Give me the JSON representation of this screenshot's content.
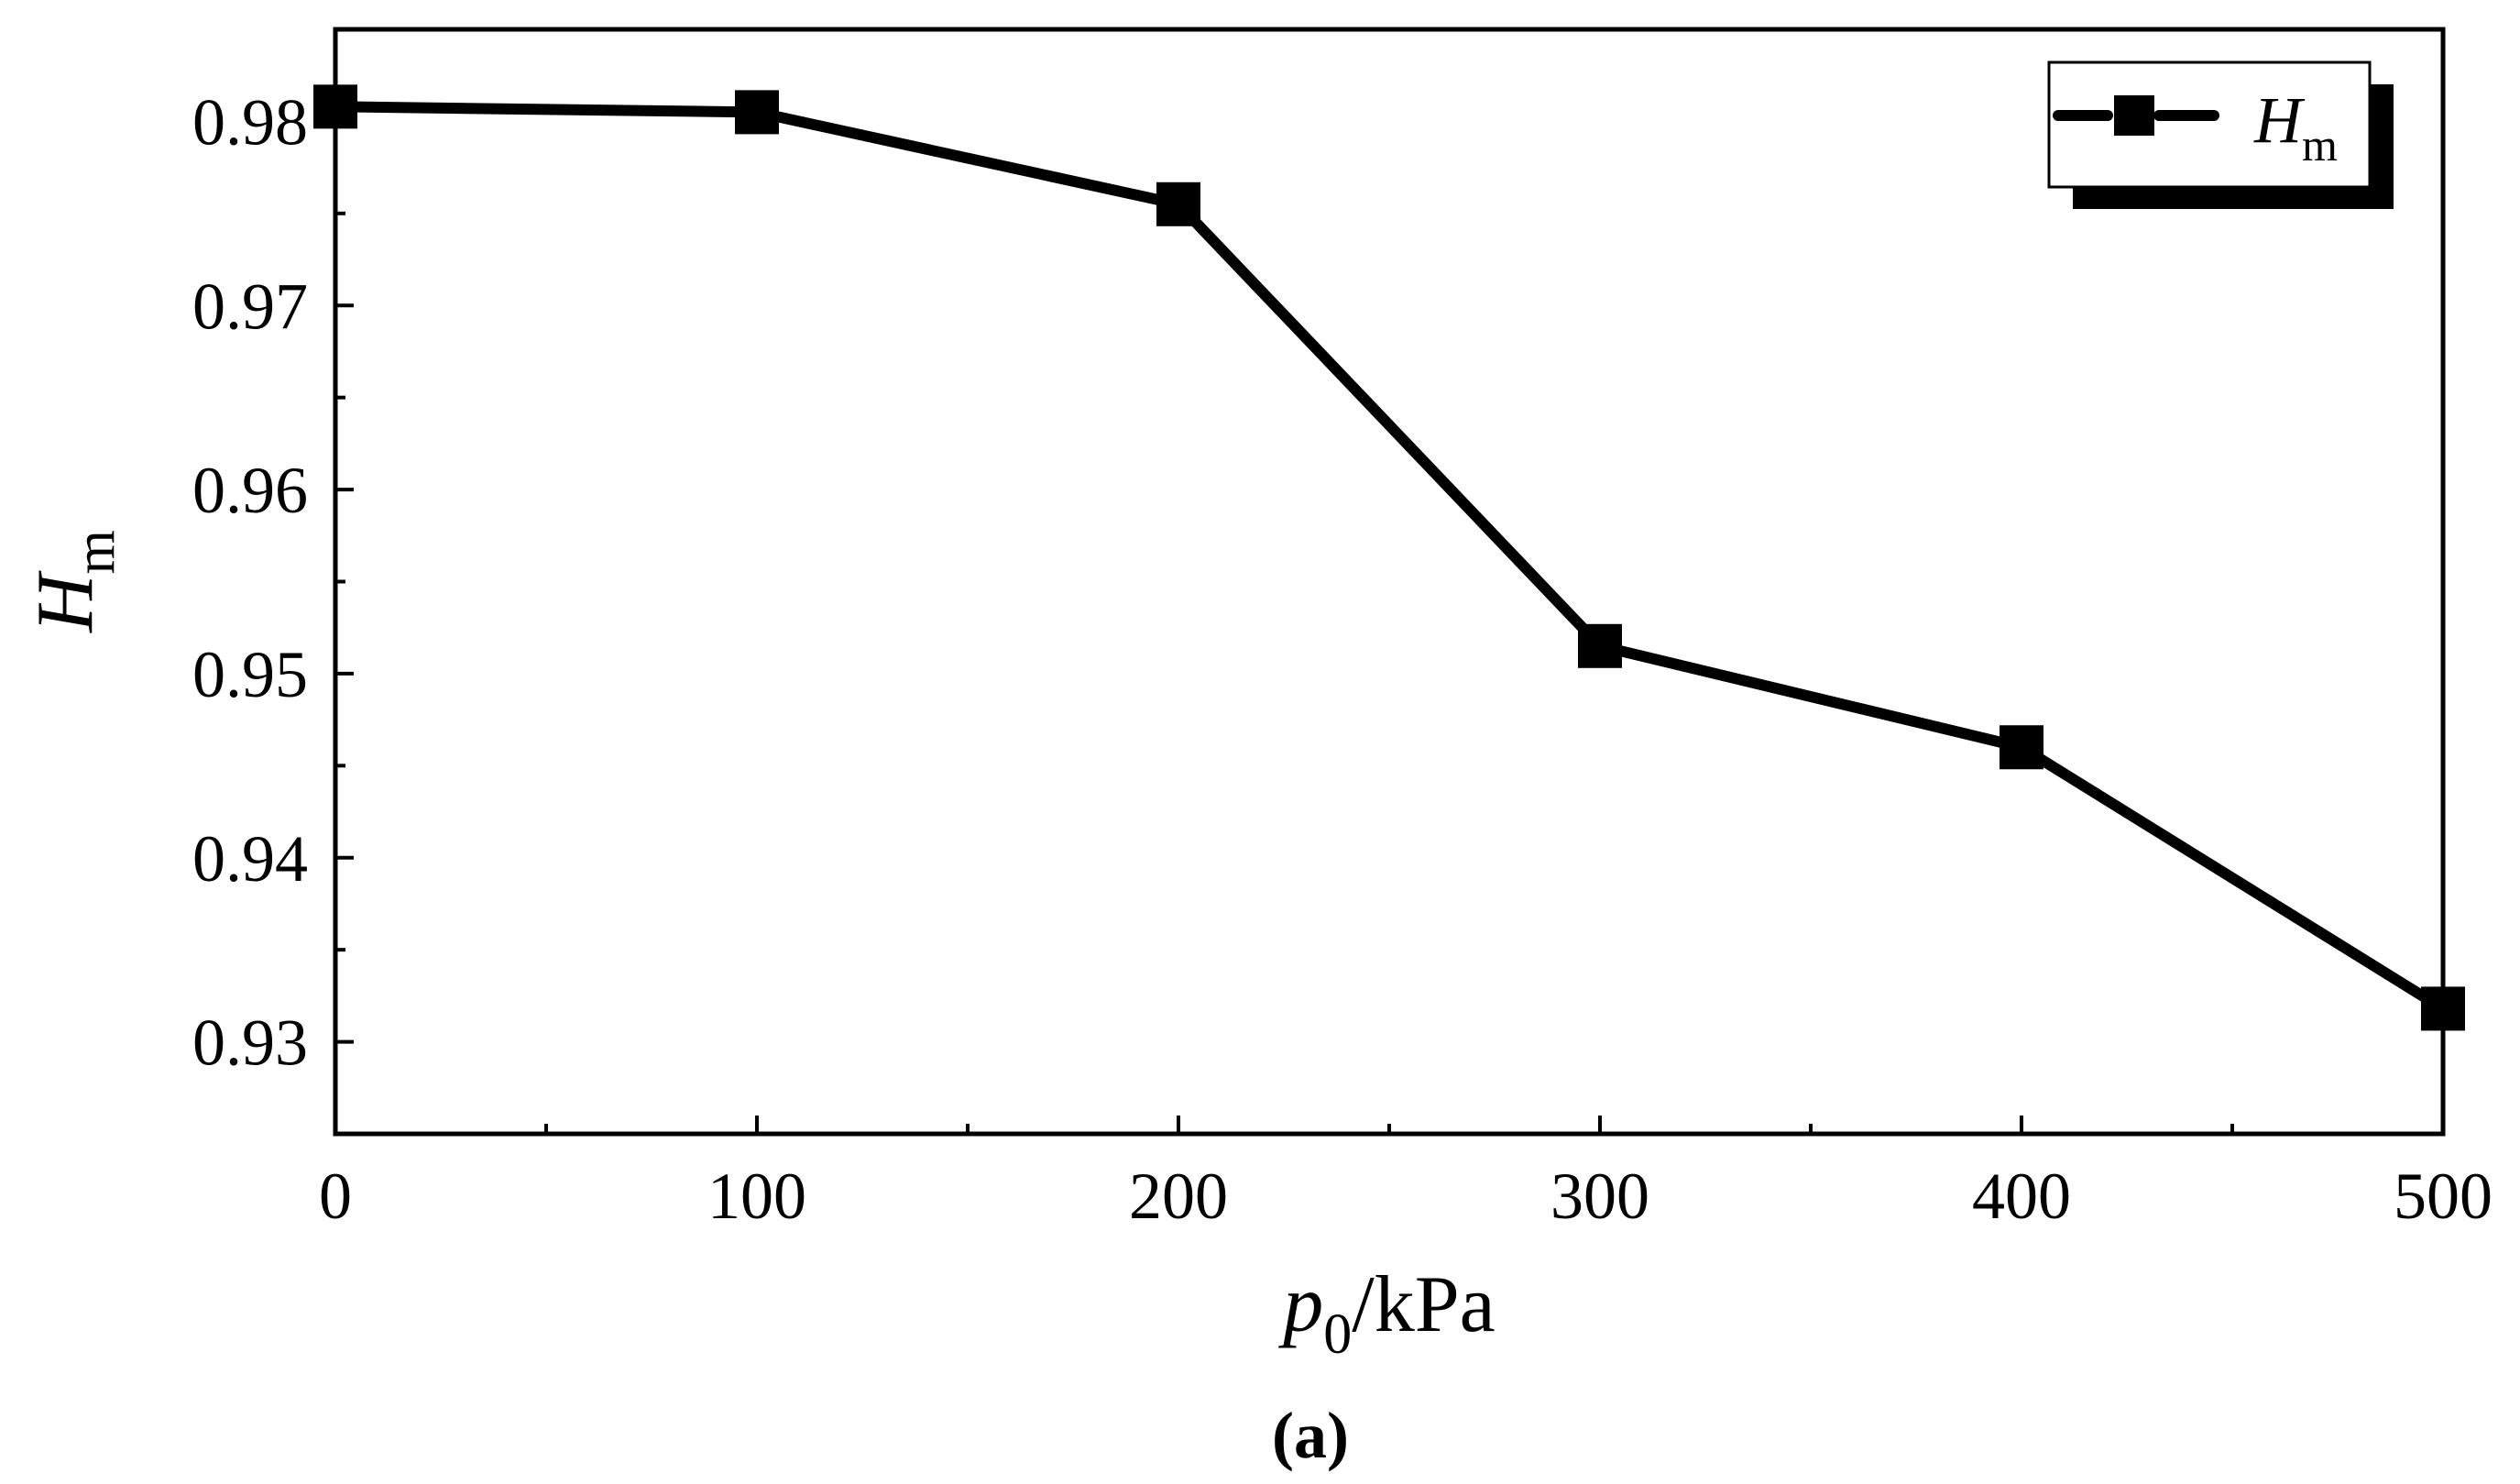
{
  "chart_data": {
    "type": "line",
    "x": [
      0,
      100,
      200,
      300,
      400,
      500
    ],
    "series": [
      {
        "name": "H_m",
        "values": [
          0.9808,
          0.9805,
          0.9755,
          0.9515,
          0.946,
          0.9318
        ]
      }
    ],
    "xlim": [
      0,
      500
    ],
    "ylim": [
      0.925,
      0.985
    ],
    "x_ticks": [
      0,
      100,
      200,
      300,
      400,
      500
    ],
    "y_ticks": [
      0.93,
      0.94,
      0.95,
      0.96,
      0.97,
      0.98
    ],
    "x_tick_labels": [
      "0",
      "100",
      "200",
      "300",
      "400",
      "500"
    ],
    "y_tick_labels": [
      "0.93",
      "0.94",
      "0.95",
      "0.96",
      "0.97",
      "0.98"
    ],
    "xlabel": {
      "main": "p",
      "sub": "0",
      "rest": "/kPa"
    },
    "ylabel": {
      "main": "H",
      "sub": "m"
    },
    "legend": {
      "position": "top-right",
      "main": "H",
      "sub": "m"
    },
    "caption": "(a)",
    "grid": false,
    "line_color": "#000000",
    "marker": "square"
  }
}
